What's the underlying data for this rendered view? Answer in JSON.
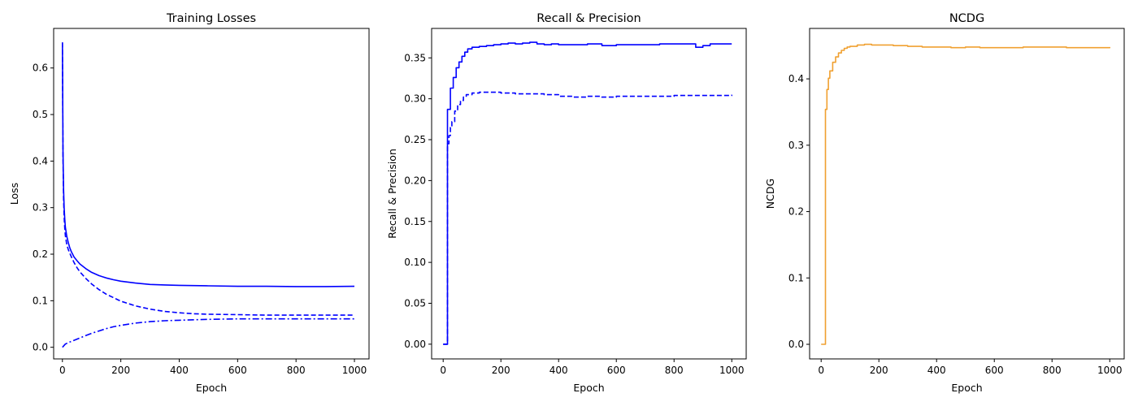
{
  "colors": {
    "blue": "#0000ff",
    "orange": "#f0a030",
    "axes": "#000000",
    "background": "#ffffff"
  },
  "chart_data": [
    {
      "type": "line",
      "title": "Training Losses",
      "xlabel": "Epoch",
      "ylabel": "Loss",
      "xlim": [
        -30,
        1050
      ],
      "ylim": [
        -0.025,
        0.685
      ],
      "xticks": [
        0,
        200,
        400,
        600,
        800,
        1000
      ],
      "yticks": [
        0.0,
        0.1,
        0.2,
        0.3,
        0.4,
        0.5,
        0.6
      ],
      "grid": false,
      "series": [
        {
          "style": "solid",
          "color": "#0000ff",
          "x": [
            0,
            2,
            4,
            6,
            8,
            10,
            15,
            20,
            25,
            30,
            40,
            50,
            60,
            80,
            100,
            125,
            150,
            175,
            200,
            250,
            300,
            350,
            400,
            500,
            600,
            700,
            800,
            900,
            1000
          ],
          "y": [
            0.655,
            0.42,
            0.34,
            0.3,
            0.275,
            0.258,
            0.238,
            0.225,
            0.214,
            0.206,
            0.194,
            0.186,
            0.179,
            0.169,
            0.161,
            0.154,
            0.149,
            0.145,
            0.142,
            0.138,
            0.135,
            0.134,
            0.133,
            0.132,
            0.131,
            0.131,
            0.1305,
            0.1305,
            0.131
          ]
        },
        {
          "style": "dashed",
          "color": "#0000ff",
          "x": [
            0,
            2,
            4,
            6,
            8,
            10,
            15,
            20,
            30,
            40,
            50,
            60,
            80,
            100,
            125,
            150,
            200,
            250,
            300,
            350,
            400,
            450,
            500,
            600,
            700,
            800,
            900,
            1000
          ],
          "y": [
            0.655,
            0.41,
            0.32,
            0.28,
            0.255,
            0.24,
            0.22,
            0.21,
            0.195,
            0.182,
            0.171,
            0.162,
            0.148,
            0.136,
            0.124,
            0.114,
            0.099,
            0.089,
            0.082,
            0.077,
            0.074,
            0.072,
            0.071,
            0.07,
            0.069,
            0.069,
            0.069,
            0.069
          ]
        },
        {
          "style": "dashdot",
          "color": "#0000ff",
          "x": [
            0,
            10,
            20,
            40,
            60,
            80,
            100,
            125,
            150,
            175,
            200,
            250,
            300,
            350,
            400,
            450,
            500,
            600,
            700,
            800,
            900,
            1000
          ],
          "y": [
            0.0,
            0.007,
            0.01,
            0.015,
            0.02,
            0.025,
            0.03,
            0.035,
            0.04,
            0.044,
            0.047,
            0.052,
            0.055,
            0.057,
            0.058,
            0.059,
            0.06,
            0.061,
            0.061,
            0.061,
            0.061,
            0.061
          ]
        }
      ]
    },
    {
      "type": "line",
      "title": "Recall & Precision",
      "xlabel": "Epoch",
      "ylabel": "Recall & Precision",
      "xlim": [
        -40,
        1050
      ],
      "ylim": [
        -0.018,
        0.386
      ],
      "xticks": [
        0,
        200,
        400,
        600,
        800,
        1000
      ],
      "yticks": [
        0.0,
        0.05,
        0.1,
        0.15,
        0.2,
        0.25,
        0.3,
        0.35
      ],
      "grid": false,
      "series": [
        {
          "style": "solid",
          "step": true,
          "color": "#0000ff",
          "x": [
            0,
            10,
            15,
            25,
            35,
            45,
            55,
            65,
            75,
            85,
            100,
            125,
            150,
            175,
            200,
            225,
            250,
            275,
            300,
            325,
            350,
            375,
            400,
            450,
            500,
            550,
            600,
            650,
            700,
            750,
            800,
            850,
            875,
            900,
            925,
            950,
            975,
            1000
          ],
          "y": [
            0.0,
            0.0,
            0.287,
            0.313,
            0.326,
            0.338,
            0.345,
            0.352,
            0.357,
            0.361,
            0.363,
            0.364,
            0.365,
            0.366,
            0.367,
            0.368,
            0.367,
            0.368,
            0.369,
            0.367,
            0.366,
            0.367,
            0.366,
            0.366,
            0.367,
            0.365,
            0.366,
            0.366,
            0.366,
            0.367,
            0.367,
            0.367,
            0.363,
            0.365,
            0.367,
            0.367,
            0.367,
            0.367
          ]
        },
        {
          "style": "dashed",
          "step": true,
          "color": "#0000ff",
          "x": [
            0,
            10,
            15,
            20,
            25,
            30,
            40,
            50,
            60,
            70,
            80,
            100,
            125,
            150,
            200,
            250,
            300,
            350,
            400,
            450,
            500,
            550,
            600,
            650,
            700,
            750,
            800,
            850,
            900,
            950,
            1000
          ],
          "y": [
            0.0,
            0.0,
            0.245,
            0.255,
            0.265,
            0.272,
            0.285,
            0.293,
            0.298,
            0.302,
            0.305,
            0.307,
            0.308,
            0.308,
            0.307,
            0.306,
            0.306,
            0.305,
            0.303,
            0.302,
            0.303,
            0.302,
            0.303,
            0.303,
            0.303,
            0.303,
            0.304,
            0.304,
            0.304,
            0.304,
            0.305
          ]
        }
      ]
    },
    {
      "type": "line",
      "title": "NCDG",
      "xlabel": "Epoch",
      "ylabel": "NCDG",
      "xlim": [
        -40,
        1050
      ],
      "ylim": [
        -0.022,
        0.476
      ],
      "xticks": [
        0,
        200,
        400,
        600,
        800,
        1000
      ],
      "yticks": [
        0.0,
        0.1,
        0.2,
        0.3,
        0.4
      ],
      "grid": false,
      "series": [
        {
          "style": "solid",
          "step": true,
          "color": "#f0a030",
          "x": [
            0,
            10,
            15,
            20,
            25,
            30,
            40,
            50,
            60,
            70,
            80,
            90,
            100,
            125,
            150,
            175,
            200,
            250,
            300,
            350,
            400,
            450,
            500,
            550,
            600,
            650,
            700,
            750,
            800,
            850,
            900,
            950,
            1000
          ],
          "y": [
            0.0,
            0.0,
            0.354,
            0.384,
            0.401,
            0.412,
            0.425,
            0.433,
            0.439,
            0.443,
            0.446,
            0.448,
            0.449,
            0.451,
            0.452,
            0.451,
            0.451,
            0.45,
            0.449,
            0.448,
            0.448,
            0.447,
            0.448,
            0.447,
            0.447,
            0.447,
            0.448,
            0.448,
            0.448,
            0.447,
            0.447,
            0.447,
            0.448
          ]
        }
      ]
    }
  ]
}
